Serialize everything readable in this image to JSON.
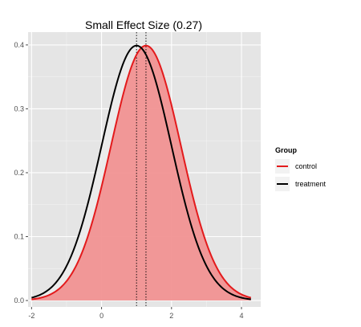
{
  "chart_data": {
    "type": "area",
    "title": "Small Effect Size (0.27)",
    "xlabel": "",
    "ylabel": "",
    "xlim": [
      -2.1,
      4.55
    ],
    "ylim": [
      -0.01,
      0.42
    ],
    "x_ticks": [
      -2,
      0,
      2,
      4
    ],
    "x_tick_labels": [
      "-2",
      "0",
      "2",
      "4"
    ],
    "y_ticks": [
      0.0,
      0.1,
      0.2,
      0.3,
      0.4
    ],
    "y_tick_labels": [
      "0.0",
      "0.1",
      "0.2",
      "0.3",
      "0.4"
    ],
    "grid": true,
    "legend_position": "right",
    "legend_title": "Group",
    "x_range": [
      -2.0,
      4.27
    ],
    "series": [
      {
        "name": "control",
        "distribution": "normal",
        "mean": 1.27,
        "sd": 1,
        "color": "#e31a1c",
        "fill": "#f28e8e"
      },
      {
        "name": "treatment",
        "distribution": "normal",
        "mean": 1.0,
        "sd": 1,
        "color": "#000000",
        "fill": "#ebebeb"
      }
    ],
    "reference_lines": [
      {
        "axis": "x",
        "value": 1.0,
        "style": "dotted"
      },
      {
        "axis": "x",
        "value": 1.27,
        "style": "dotted"
      }
    ]
  }
}
